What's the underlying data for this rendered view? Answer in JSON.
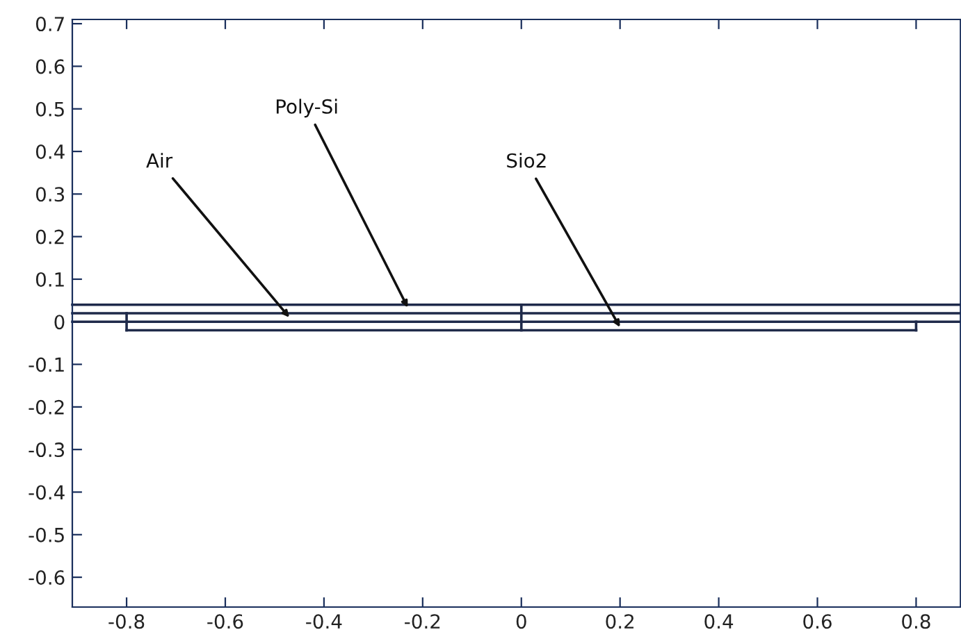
{
  "chart_data": {
    "type": "line",
    "xlim": [
      -0.91,
      0.89
    ],
    "ylim": [
      -0.67,
      0.71
    ],
    "xticks": [
      -0.8,
      -0.6,
      -0.4,
      -0.2,
      0,
      0.2,
      0.4,
      0.6,
      0.8
    ],
    "yticks": [
      -0.6,
      -0.5,
      -0.4,
      -0.3,
      -0.2,
      -0.1,
      0,
      0.1,
      0.2,
      0.3,
      0.4,
      0.5,
      0.6,
      0.7
    ],
    "grid": false,
    "marker": "none",
    "line_style": "solid",
    "series": [
      {
        "color": "#1f2a4a",
        "x": [
          -0.91,
          0.89
        ],
        "values": [
          0.04,
          0.04
        ]
      },
      {
        "color": "#1f2a4a",
        "x": [
          -0.91,
          0.89
        ],
        "values": [
          0.02,
          0.02
        ]
      },
      {
        "color": "#1f2a4a",
        "x": [
          -0.91,
          0.89
        ],
        "values": [
          0,
          0
        ]
      },
      {
        "color": "#1f2a4a",
        "x": [
          -0.8,
          0.8
        ],
        "values": [
          -0.02,
          -0.02
        ]
      },
      {
        "color": "#1f2a4a",
        "x": [
          -0.8,
          -0.8
        ],
        "values": [
          0.02,
          -0.02
        ]
      },
      {
        "color": "#1f2a4a",
        "x": [
          0,
          0
        ],
        "values": [
          0.04,
          -0.02
        ]
      },
      {
        "color": "#1f2a4a",
        "x": [
          0.8,
          0.8
        ],
        "values": [
          0,
          -0.02
        ]
      }
    ],
    "annotations": [
      {
        "text": "Air",
        "x": -0.47,
        "y": 0.01
      },
      {
        "text": "Poly-Si",
        "x": -0.23,
        "y": 0.033
      },
      {
        "text": "Sio2",
        "x": 0.2,
        "y": -0.013
      }
    ]
  }
}
